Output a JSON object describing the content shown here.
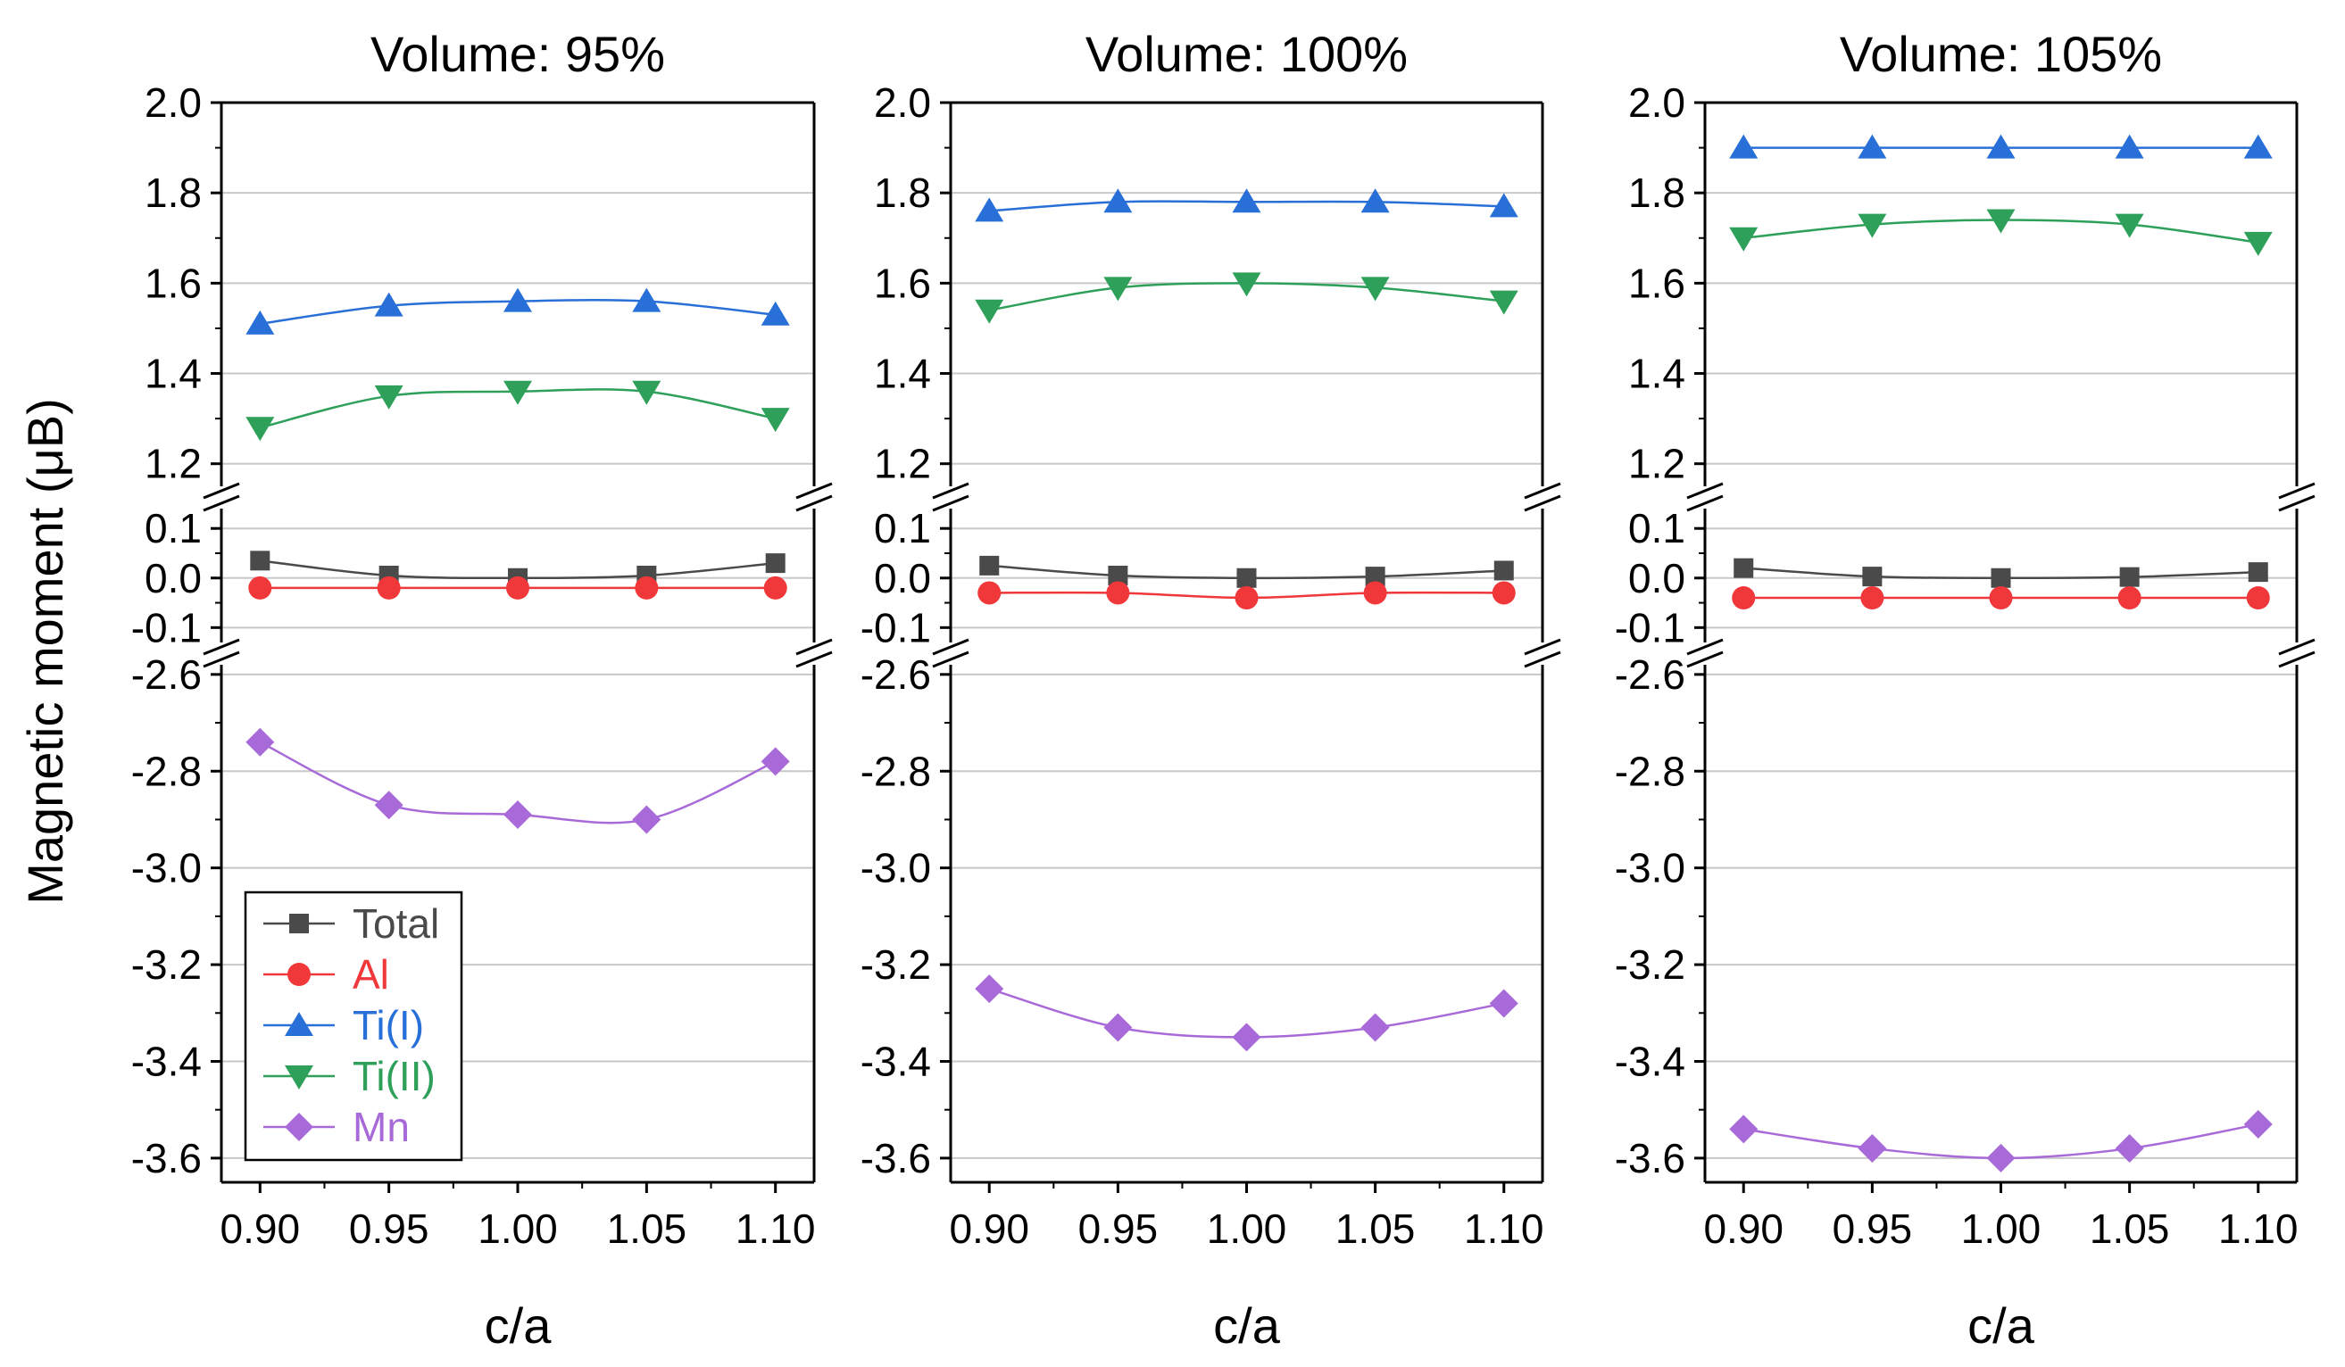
{
  "chart_data": [
    {
      "type": "line",
      "title": "Volume: 95%",
      "xlabel": "c/a",
      "ylabel": "Magnetic moment (μB)",
      "x": [
        0.9,
        0.95,
        1.0,
        1.05,
        1.1
      ],
      "x_ticks": [
        "0.90",
        "0.95",
        "1.00",
        "1.05",
        "1.10"
      ],
      "broken_y_axis_segments": [
        {
          "ylim": [
            1.15,
            2.0
          ],
          "ticks": [
            "1.2",
            "1.4",
            "1.6",
            "1.8",
            "2.0"
          ]
        },
        {
          "ylim": [
            -0.13,
            0.14
          ],
          "ticks": [
            "-0.1",
            "0.0",
            "0.1"
          ]
        },
        {
          "ylim": [
            -3.65,
            -2.58
          ],
          "ticks": [
            "-3.6",
            "-3.4",
            "-3.2",
            "-3.0",
            "-2.8",
            "-2.6"
          ]
        }
      ],
      "series": [
        {
          "name": "Total",
          "values": [
            0.035,
            0.005,
            0.0,
            0.005,
            0.03
          ]
        },
        {
          "name": "Al",
          "values": [
            -0.02,
            -0.02,
            -0.02,
            -0.02,
            -0.02
          ]
        },
        {
          "name": "Ti(I)",
          "values": [
            1.51,
            1.55,
            1.56,
            1.56,
            1.53
          ]
        },
        {
          "name": "Ti(II)",
          "values": [
            1.28,
            1.35,
            1.36,
            1.36,
            1.3
          ]
        },
        {
          "name": "Mn",
          "values": [
            -2.74,
            -2.87,
            -2.89,
            -2.9,
            -2.78
          ]
        }
      ],
      "legend": {
        "position": "bottom-left",
        "entries": [
          "Total",
          "Al",
          "Ti(I)",
          "Ti(II)",
          "Mn"
        ]
      }
    },
    {
      "type": "line",
      "title": "Volume: 100%",
      "xlabel": "c/a",
      "x": [
        0.9,
        0.95,
        1.0,
        1.05,
        1.1
      ],
      "x_ticks": [
        "0.90",
        "0.95",
        "1.00",
        "1.05",
        "1.10"
      ],
      "broken_y_axis_segments": [
        {
          "ylim": [
            1.15,
            2.0
          ],
          "ticks": [
            "1.2",
            "1.4",
            "1.6",
            "1.8",
            "2.0"
          ]
        },
        {
          "ylim": [
            -0.13,
            0.14
          ],
          "ticks": [
            "-0.1",
            "0.0",
            "0.1"
          ]
        },
        {
          "ylim": [
            -3.65,
            -2.58
          ],
          "ticks": [
            "-3.6",
            "-3.4",
            "-3.2",
            "-3.0",
            "-2.8",
            "-2.6"
          ]
        }
      ],
      "series": [
        {
          "name": "Total",
          "values": [
            0.025,
            0.005,
            0.0,
            0.003,
            0.015
          ]
        },
        {
          "name": "Al",
          "values": [
            -0.03,
            -0.03,
            -0.04,
            -0.03,
            -0.03
          ]
        },
        {
          "name": "Ti(I)",
          "values": [
            1.76,
            1.78,
            1.78,
            1.78,
            1.77
          ]
        },
        {
          "name": "Ti(II)",
          "values": [
            1.54,
            1.59,
            1.6,
            1.59,
            1.56
          ]
        },
        {
          "name": "Mn",
          "values": [
            -3.25,
            -3.33,
            -3.35,
            -3.33,
            -3.28
          ]
        }
      ]
    },
    {
      "type": "line",
      "title": "Volume: 105%",
      "xlabel": "c/a",
      "x": [
        0.9,
        0.95,
        1.0,
        1.05,
        1.1
      ],
      "x_ticks": [
        "0.90",
        "0.95",
        "1.00",
        "1.05",
        "1.10"
      ],
      "broken_y_axis_segments": [
        {
          "ylim": [
            1.15,
            2.0
          ],
          "ticks": [
            "1.2",
            "1.4",
            "1.6",
            "1.8",
            "2.0"
          ]
        },
        {
          "ylim": [
            -0.13,
            0.14
          ],
          "ticks": [
            "-0.1",
            "0.0",
            "0.1"
          ]
        },
        {
          "ylim": [
            -3.65,
            -2.58
          ],
          "ticks": [
            "-3.6",
            "-3.4",
            "-3.2",
            "-3.0",
            "-2.8",
            "-2.6"
          ]
        }
      ],
      "series": [
        {
          "name": "Total",
          "values": [
            0.02,
            0.003,
            0.0,
            0.002,
            0.012
          ]
        },
        {
          "name": "Al",
          "values": [
            -0.04,
            -0.04,
            -0.04,
            -0.04,
            -0.04
          ]
        },
        {
          "name": "Ti(I)",
          "values": [
            1.9,
            1.9,
            1.9,
            1.9,
            1.9
          ]
        },
        {
          "name": "Ti(II)",
          "values": [
            1.7,
            1.73,
            1.74,
            1.73,
            1.69
          ]
        },
        {
          "name": "Mn",
          "values": [
            -3.54,
            -3.58,
            -3.6,
            -3.58,
            -3.53
          ]
        }
      ]
    }
  ],
  "series_styles": {
    "Total": {
      "color": "#4a4a4a",
      "marker": "square"
    },
    "Al": {
      "color": "#f0383a",
      "marker": "circle"
    },
    "Ti(I)": {
      "color": "#2870d8",
      "marker": "triangle-up"
    },
    "Ti(II)": {
      "color": "#2ea05a",
      "marker": "triangle-down"
    },
    "Mn": {
      "color": "#a86ad8",
      "marker": "diamond"
    }
  },
  "colors": {
    "gridline": "#c8c8c8",
    "axis": "#000000"
  }
}
